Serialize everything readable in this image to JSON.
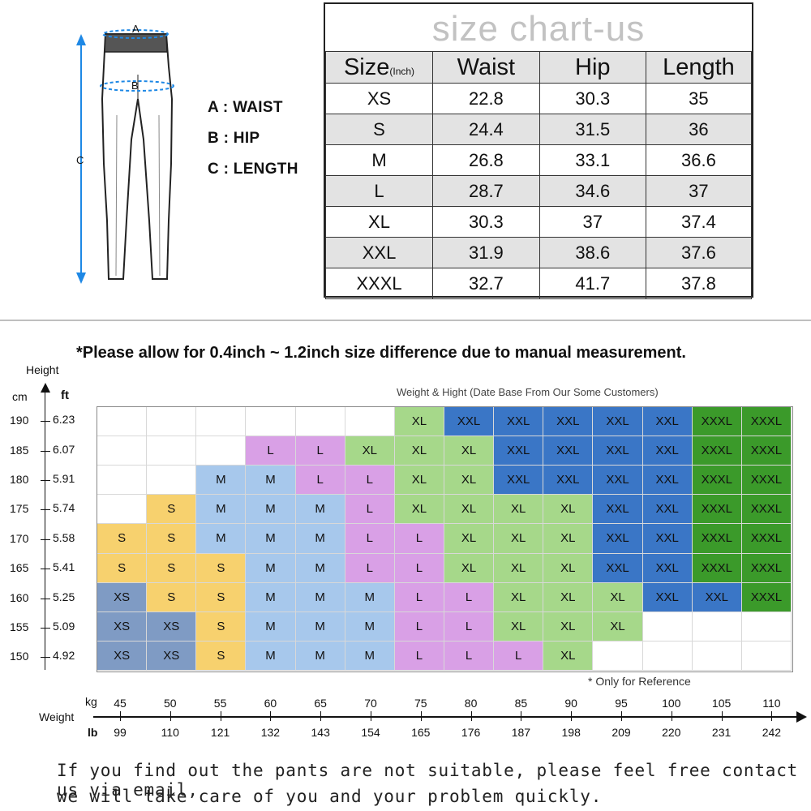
{
  "diagram": {
    "marker_a": "A",
    "marker_b": "B",
    "marker_c": "C",
    "legend": [
      "A : WAIST",
      "B : HIP",
      "C : LENGTH"
    ],
    "arrow_color": "#1e88e5"
  },
  "size_chart": {
    "title": "size chart-us",
    "header": {
      "size": "Size",
      "unit": "(Inch)",
      "waist": "Waist",
      "hip": "Hip",
      "length": "Length"
    },
    "rows": [
      {
        "size": "XS",
        "waist": "22.8",
        "hip": "30.3",
        "length": "35"
      },
      {
        "size": "S",
        "waist": "24.4",
        "hip": "31.5",
        "length": "36"
      },
      {
        "size": "M",
        "waist": "26.8",
        "hip": "33.1",
        "length": "36.6"
      },
      {
        "size": "L",
        "waist": "28.7",
        "hip": "34.6",
        "length": "37"
      },
      {
        "size": "XL",
        "waist": "30.3",
        "hip": "37",
        "length": "37.4"
      },
      {
        "size": "XXL",
        "waist": "31.9",
        "hip": "38.6",
        "length": "37.6"
      },
      {
        "size": "XXXL",
        "waist": "32.7",
        "hip": "41.7",
        "length": "37.8"
      }
    ]
  },
  "note": "*Please allow for 0.4inch ~ 1.2inch size difference due to manual measurement.",
  "height_axis": {
    "label": "Height",
    "unit_cm": "cm",
    "unit_ft": "ft",
    "rows": [
      {
        "cm": "190",
        "ft": "6.23"
      },
      {
        "cm": "185",
        "ft": "6.07"
      },
      {
        "cm": "180",
        "ft": "5.91"
      },
      {
        "cm": "175",
        "ft": "5.74"
      },
      {
        "cm": "170",
        "ft": "5.58"
      },
      {
        "cm": "165",
        "ft": "5.41"
      },
      {
        "cm": "160",
        "ft": "5.25"
      },
      {
        "cm": "155",
        "ft": "5.09"
      },
      {
        "cm": "150",
        "ft": "4.92"
      }
    ]
  },
  "grid": {
    "title": "Weight & Hight (Date Base From Our Some Customers)",
    "footnote": "* Only for Reference",
    "colors": {
      "XS": "#7f9bc4",
      "S": "#f7d16e",
      "M": "#a7c8ec",
      "L": "#d9a0e6",
      "XL": "#a6d88a",
      "XXL": "#3a76c6",
      "XXXL": "#3b9a2a",
      "empty": "#ffffff"
    },
    "rows": [
      [
        "",
        "",
        "",
        "",
        "",
        "",
        "XL",
        "XXL",
        "XXL",
        "XXL",
        "XXL",
        "XXL",
        "XXXL",
        "XXXL"
      ],
      [
        "",
        "",
        "",
        "L",
        "L",
        "XL",
        "XL",
        "XL",
        "XXL",
        "XXL",
        "XXL",
        "XXL",
        "XXXL",
        "XXXL"
      ],
      [
        "",
        "",
        "M",
        "M",
        "L",
        "L",
        "XL",
        "XL",
        "XXL",
        "XXL",
        "XXL",
        "XXL",
        "XXXL",
        "XXXL"
      ],
      [
        "",
        "S",
        "M",
        "M",
        "M",
        "L",
        "XL",
        "XL",
        "XL",
        "XL",
        "XXL",
        "XXL",
        "XXXL",
        "XXXL"
      ],
      [
        "S",
        "S",
        "M",
        "M",
        "M",
        "L",
        "L",
        "XL",
        "XL",
        "XL",
        "XXL",
        "XXL",
        "XXXL",
        "XXXL"
      ],
      [
        "S",
        "S",
        "S",
        "M",
        "M",
        "L",
        "L",
        "XL",
        "XL",
        "XL",
        "XXL",
        "XXL",
        "XXXL",
        "XXXL"
      ],
      [
        "XS",
        "S",
        "S",
        "M",
        "M",
        "M",
        "L",
        "L",
        "XL",
        "XL",
        "XL",
        "XXL",
        "XXL",
        "XXXL"
      ],
      [
        "XS",
        "XS",
        "S",
        "M",
        "M",
        "M",
        "L",
        "L",
        "XL",
        "XL",
        "XL",
        "",
        "",
        ""
      ],
      [
        "XS",
        "XS",
        "S",
        "M",
        "M",
        "M",
        "L",
        "L",
        "L",
        "XL",
        "",
        "",
        "",
        ""
      ]
    ]
  },
  "weight_axis": {
    "label": "Weight",
    "unit_kg": "kg",
    "unit_lb": "lb",
    "kg": [
      "45",
      "50",
      "55",
      "60",
      "65",
      "70",
      "75",
      "80",
      "85",
      "90",
      "95",
      "100",
      "105",
      "110"
    ],
    "lb": [
      "99",
      "110",
      "121",
      "132",
      "143",
      "154",
      "165",
      "176",
      "187",
      "198",
      "209",
      "220",
      "231",
      "242"
    ]
  },
  "footer": [
    "If you find out the pants are not suitable, please feel free contact us via email,",
    "we will take care of you and your problem quickly."
  ]
}
